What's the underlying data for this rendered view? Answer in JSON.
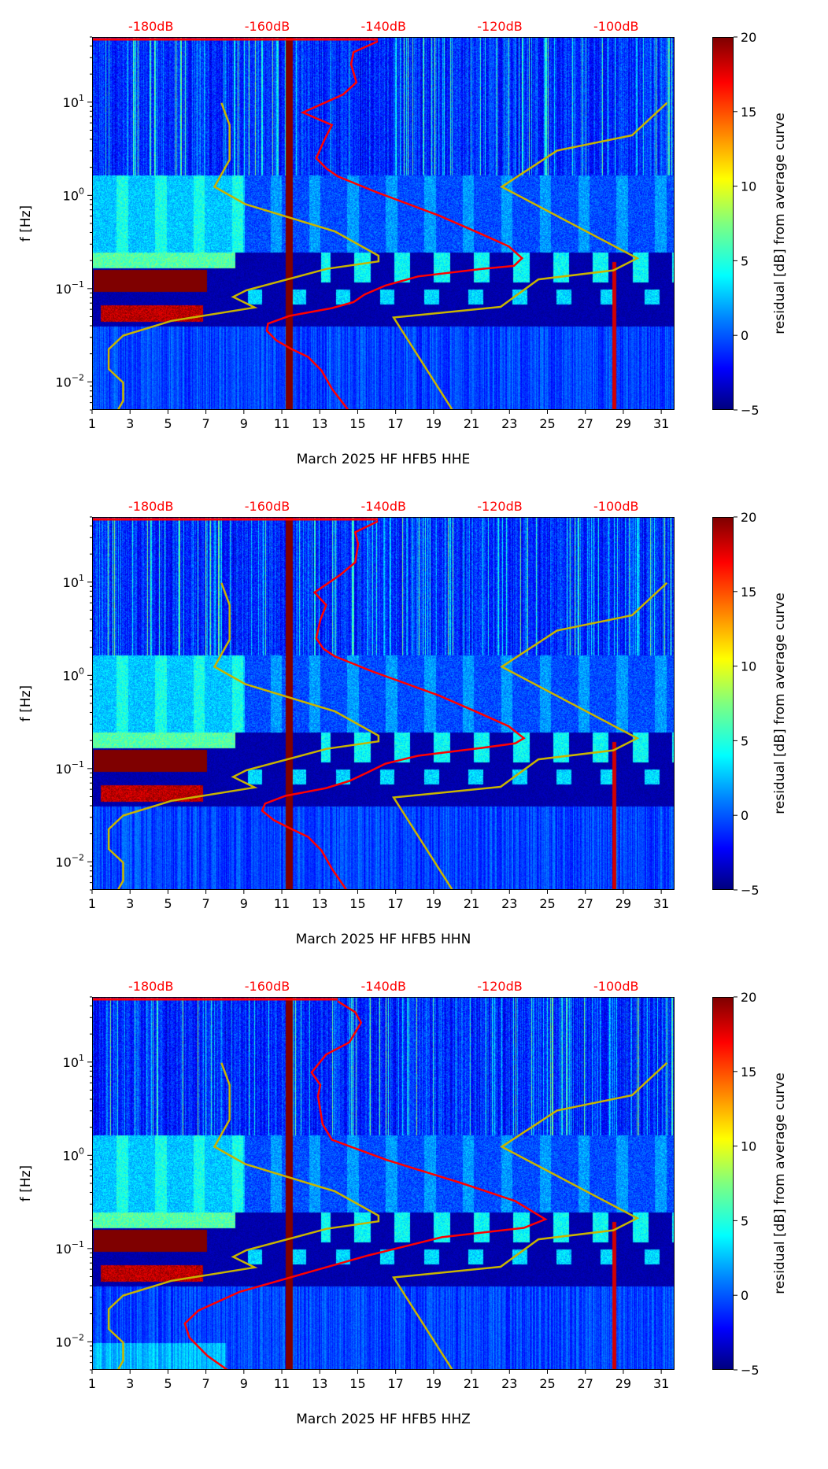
{
  "chart_data": {
    "type": "heatmap",
    "description_axes": {
      "xlabel_template": "March 2025 HF HFB5",
      "ylabel": "f [Hz]",
      "xlim": [
        1,
        31.7
      ],
      "ylim": [
        0.005,
        50
      ],
      "yscale": "log",
      "xticks": [
        1,
        3,
        5,
        7,
        9,
        11,
        13,
        15,
        17,
        19,
        21,
        23,
        25,
        27,
        29,
        31
      ],
      "yticks": [
        {
          "value": 0.01,
          "base": "10",
          "exp": "−2"
        },
        {
          "value": 0.1,
          "base": "10",
          "exp": "−1"
        },
        {
          "value": 1,
          "base": "10",
          "exp": "0"
        },
        {
          "value": 10,
          "base": "10",
          "exp": "1"
        }
      ]
    },
    "top_axis": {
      "ticks": [
        {
          "db": -180,
          "label": "-180dB"
        },
        {
          "db": -160,
          "label": "-160dB"
        },
        {
          "db": -140,
          "label": "-140dB"
        },
        {
          "db": -120,
          "label": "-120dB"
        },
        {
          "db": -100,
          "label": "-100dB"
        }
      ],
      "day_at_minus180": 4.1,
      "days_per_db": 0.3065,
      "color": "#ff0000"
    },
    "colorbar": {
      "label": "residual [dB] from average curve",
      "range": [
        -5,
        20
      ],
      "ticks": [
        "−5",
        "0",
        "5",
        "10",
        "15",
        "20"
      ],
      "tick_values": [
        -5,
        0,
        5,
        10,
        15,
        20
      ],
      "colormap": "jet"
    },
    "noise_models": {
      "color": "#c8b400",
      "low": [
        [
          -168.0,
          10
        ],
        [
          -166.6,
          5.8
        ],
        [
          -166.6,
          2.46
        ],
        [
          -169.2,
          1.26
        ],
        [
          -163.9,
          0.82
        ],
        [
          -148.5,
          0.42
        ],
        [
          -141.0,
          0.23
        ],
        [
          -141.0,
          0.2
        ],
        [
          -149.9,
          0.166
        ],
        [
          -163.7,
          0.098
        ],
        [
          -166.0,
          0.083
        ],
        [
          -162.3,
          0.064
        ],
        [
          -176.6,
          0.046
        ],
        [
          -184.9,
          0.032
        ],
        [
          -187.4,
          0.0228
        ],
        [
          -187.4,
          0.014
        ],
        [
          -184.9,
          0.01
        ],
        [
          -184.9,
          0.0064
        ],
        [
          -185.8,
          0.0051
        ]
      ],
      "high": [
        [
          -91.4,
          10
        ],
        [
          -97.4,
          4.49
        ],
        [
          -110.3,
          3.08
        ],
        [
          -119.8,
          1.26
        ],
        [
          -96.5,
          0.216
        ],
        [
          -100.6,
          0.16
        ],
        [
          -113.5,
          0.128
        ],
        [
          -120.0,
          0.065
        ],
        [
          -138.4,
          0.05
        ],
        [
          -128.2,
          0.005
        ]
      ]
    },
    "panels": [
      {
        "channel": "HHE",
        "xlabel": "March 2025 HF HFB5  HHE",
        "median_psd_color": "#ff0000",
        "median_psd": [
          [
            -141.1,
            45.8
          ],
          [
            -145.3,
            35
          ],
          [
            -145.7,
            26
          ],
          [
            -144.8,
            16.6
          ],
          [
            -147.1,
            12.3
          ],
          [
            -154.0,
            7.9
          ],
          [
            -149.0,
            5.8
          ],
          [
            -150.3,
            4.0
          ],
          [
            -151.7,
            2.56
          ],
          [
            -149.9,
            1.97
          ],
          [
            -148.0,
            1.63
          ],
          [
            -141.6,
            1.12
          ],
          [
            -130.6,
            0.62
          ],
          [
            -123.2,
            0.39
          ],
          [
            -118.6,
            0.29
          ],
          [
            -116.3,
            0.216
          ],
          [
            -117.7,
            0.179
          ],
          [
            -123.2,
            0.166
          ],
          [
            -134.2,
            0.138
          ],
          [
            -139.8,
            0.11
          ],
          [
            -143.4,
            0.088
          ],
          [
            -145.3,
            0.073
          ],
          [
            -149.0,
            0.063
          ],
          [
            -156.3,
            0.052
          ],
          [
            -160.0,
            0.043
          ],
          [
            -160.2,
            0.036
          ],
          [
            -158.6,
            0.0285
          ],
          [
            -155.9,
            0.0228
          ],
          [
            -153.1,
            0.0189
          ],
          [
            -150.8,
            0.0135
          ],
          [
            -149.0,
            0.0086
          ],
          [
            -146.2,
            0.0051
          ]
        ]
      },
      {
        "channel": "HHN",
        "xlabel": "March 2025 HF HFB5  HHN",
        "median_psd_color": "#ff0000",
        "median_psd": [
          [
            -141.1,
            45.8
          ],
          [
            -145.0,
            35
          ],
          [
            -144.5,
            26
          ],
          [
            -145.0,
            16.6
          ],
          [
            -147.5,
            12.3
          ],
          [
            -152.0,
            7.9
          ],
          [
            -150.0,
            5.8
          ],
          [
            -151.0,
            4.0
          ],
          [
            -151.7,
            2.56
          ],
          [
            -150.5,
            1.97
          ],
          [
            -148.5,
            1.63
          ],
          [
            -142.0,
            1.12
          ],
          [
            -130.6,
            0.62
          ],
          [
            -123.2,
            0.39
          ],
          [
            -118.6,
            0.29
          ],
          [
            -116.0,
            0.216
          ],
          [
            -117.5,
            0.19
          ],
          [
            -123.2,
            0.17
          ],
          [
            -134.2,
            0.14
          ],
          [
            -139.8,
            0.115
          ],
          [
            -143.0,
            0.092
          ],
          [
            -146.0,
            0.075
          ],
          [
            -150.0,
            0.063
          ],
          [
            -157.0,
            0.052
          ],
          [
            -160.5,
            0.043
          ],
          [
            -161.0,
            0.036
          ],
          [
            -159.0,
            0.0285
          ],
          [
            -155.9,
            0.0228
          ],
          [
            -153.1,
            0.0189
          ],
          [
            -150.8,
            0.0135
          ],
          [
            -149.0,
            0.0086
          ],
          [
            -146.5,
            0.0051
          ]
        ]
      },
      {
        "channel": "HHZ",
        "xlabel": "March 2025 HF HFB5  HHZ",
        "median_psd_color": "#ff0000",
        "median_psd": [
          [
            -148.0,
            45.8
          ],
          [
            -145.0,
            35
          ],
          [
            -144.0,
            27
          ],
          [
            -146.0,
            16.6
          ],
          [
            -150.0,
            12.3
          ],
          [
            -152.5,
            7.9
          ],
          [
            -151.0,
            5.8
          ],
          [
            -151.4,
            4.4
          ],
          [
            -150.6,
            2.2
          ],
          [
            -149.0,
            1.5
          ],
          [
            -139.6,
            0.91
          ],
          [
            -127.0,
            0.52
          ],
          [
            -117.5,
            0.33
          ],
          [
            -112.3,
            0.21
          ],
          [
            -116.0,
            0.17
          ],
          [
            -130.1,
            0.135
          ],
          [
            -142.8,
            0.086
          ],
          [
            -153.8,
            0.055
          ],
          [
            -164.9,
            0.035
          ],
          [
            -172.0,
            0.022
          ],
          [
            -174.3,
            0.016
          ],
          [
            -173.5,
            0.0113
          ],
          [
            -170.4,
            0.0072
          ],
          [
            -166.8,
            0.005
          ]
        ]
      }
    ]
  }
}
